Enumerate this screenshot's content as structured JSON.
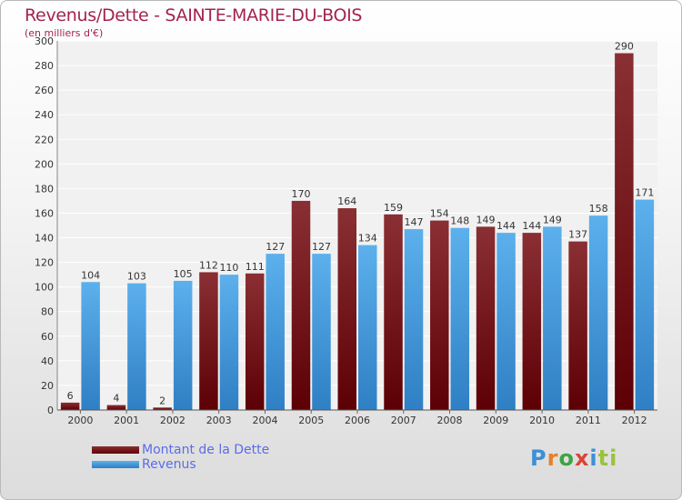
{
  "title": "Revenus/Dette - SAINTE-MARIE-DU-BOIS",
  "subtitle": "(en milliers d'€)",
  "logo": {
    "text": "Proxiti",
    "letters": [
      "P",
      "r",
      "o",
      "x",
      "i",
      "ti"
    ]
  },
  "colors": {
    "title": "#a3244d",
    "dette": "#6e0f14",
    "revenus": "#3f95d8",
    "legend_text": "#5a6ce8"
  },
  "legend": [
    {
      "label": "Montant de la Dette",
      "color": "#6e0f14"
    },
    {
      "label": "Revenus",
      "color": "#3f95d8"
    }
  ],
  "chart_data": {
    "type": "bar",
    "title": "Revenus/Dette - SAINTE-MARIE-DU-BOIS",
    "subtitle": "(en milliers d'€)",
    "categories": [
      "2000",
      "2001",
      "2002",
      "2003",
      "2004",
      "2005",
      "2006",
      "2007",
      "2008",
      "2009",
      "2010",
      "2011",
      "2012"
    ],
    "series": [
      {
        "name": "Montant de la Dette",
        "values": [
          6,
          4,
          2,
          112,
          111,
          170,
          164,
          159,
          154,
          149,
          144,
          137,
          290
        ]
      },
      {
        "name": "Revenus",
        "values": [
          104,
          103,
          105,
          110,
          127,
          127,
          134,
          147,
          148,
          144,
          149,
          158,
          171
        ]
      }
    ],
    "ylim": [
      0,
      300
    ],
    "yticks": [
      0,
      20,
      40,
      60,
      80,
      100,
      120,
      140,
      160,
      180,
      200,
      220,
      240,
      260,
      280,
      300
    ],
    "grid": true,
    "legend_position": "bottom-left"
  }
}
